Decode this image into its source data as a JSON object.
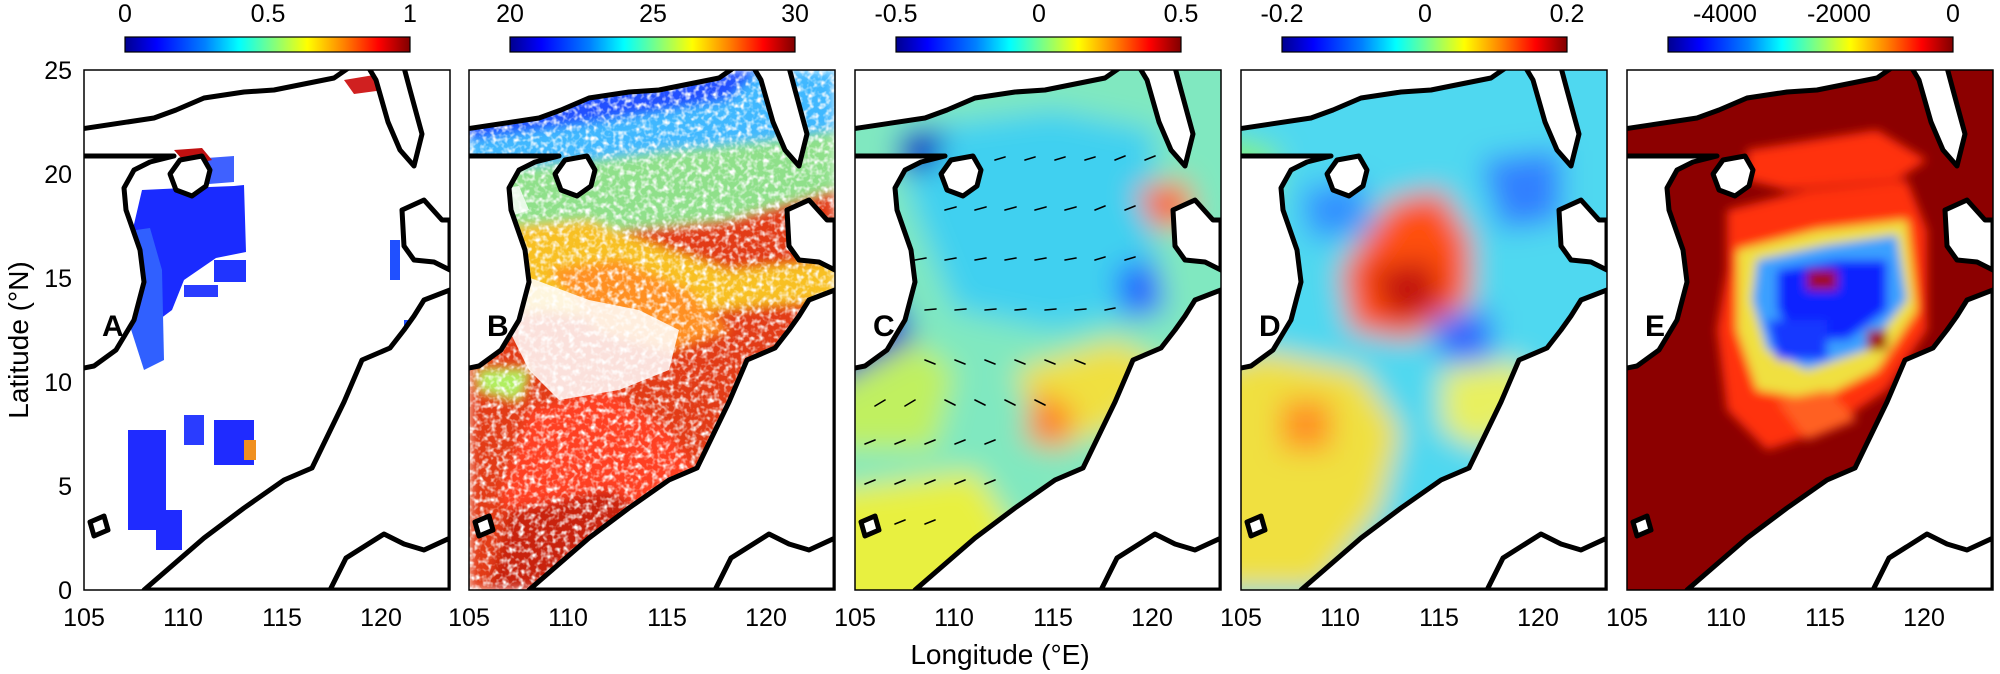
{
  "figure": {
    "xlabel": "Longitude (°E)",
    "ylabel": "Latitude (°N)",
    "map_xticks": [
      "105",
      "110",
      "115",
      "120"
    ],
    "map_yticks": [
      "0",
      "5",
      "10",
      "15",
      "20",
      "25"
    ],
    "lon_range": [
      105,
      123.5
    ],
    "lat_range": [
      0,
      25
    ]
  },
  "panels": [
    {
      "id": "A",
      "label": "A",
      "colorbar": {
        "ticks": [
          "0",
          "0.5",
          "1"
        ],
        "range": [
          0,
          1
        ]
      }
    },
    {
      "id": "B",
      "label": "B",
      "colorbar": {
        "ticks": [
          "20",
          "25",
          "30"
        ],
        "range": [
          20,
          30
        ]
      }
    },
    {
      "id": "C",
      "label": "C",
      "colorbar": {
        "ticks": [
          "-0.5",
          "0",
          "0.5"
        ],
        "range": [
          -0.5,
          0.5
        ]
      }
    },
    {
      "id": "D",
      "label": "D",
      "colorbar": {
        "ticks": [
          "-0.2",
          "0",
          "0.2"
        ],
        "range": [
          -0.2,
          0.2
        ]
      }
    },
    {
      "id": "E",
      "label": "E",
      "colorbar": {
        "ticks": [
          "-4000",
          "-2000",
          "0"
        ],
        "range": [
          -5000,
          0
        ]
      }
    }
  ],
  "colors": {
    "jet": [
      "#00008f",
      "#0000ff",
      "#0080ff",
      "#00ffff",
      "#80ff80",
      "#ffff00",
      "#ff8000",
      "#ff0000",
      "#800000"
    ],
    "coastline": "#000000",
    "land": "#ffffff"
  }
}
